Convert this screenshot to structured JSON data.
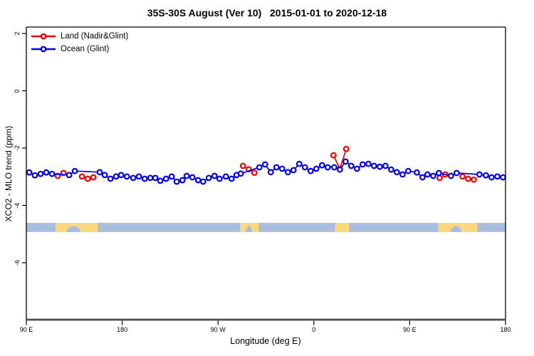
{
  "title": "35S-30S August (Ver 10)   2015-01-01 to 2020-12-18",
  "axes": {
    "x_label": "Longitude (deg E)",
    "y_label": "XCO2 - MLO trend (ppm)",
    "x_ticks": [
      {
        "deg": 90,
        "label": "90 E"
      },
      {
        "deg": 180,
        "label": "180"
      },
      {
        "deg": 270,
        "label": "90 W"
      },
      {
        "deg": 360,
        "label": "0"
      },
      {
        "deg": 450,
        "label": "90 E"
      },
      {
        "deg": 540,
        "label": "180"
      }
    ],
    "y_ticks": [
      {
        "value": 2,
        "label": "2"
      },
      {
        "value": 0,
        "label": "0"
      },
      {
        "value": -2,
        "label": "-2"
      },
      {
        "value": -4,
        "label": "-4"
      },
      {
        "value": -6,
        "label": "-6"
      }
    ]
  },
  "legend": [
    {
      "name": "Land (Nadir&Glint)",
      "color": "#ff0000"
    },
    {
      "name": "Ocean (Glint)",
      "color": "#0000ff"
    }
  ],
  "colors": {
    "land_series": "#ff0000",
    "ocean_series": "#0000ff",
    "band_ocean": "#a9bedf",
    "band_land": "#fcd87f",
    "frame": "#000000",
    "bottom_axis": "#4d4d4d",
    "marker_fill": "#ffffff"
  },
  "chart_data": {
    "type": "line",
    "title": "35S-30S August (Ver 10)   2015-01-01 to 2020-12-18",
    "xlabel": "Longitude (deg E)",
    "ylabel": "XCO2 - MLO trend (ppm)",
    "x_axis_note": "x = longitude along axis starting at 90E, increasing eastward through 180, 90W, 0, 90E to 180 (axis degrees 90-540)",
    "xlim_deg": [
      90,
      540
    ],
    "ylim": [
      -8,
      2.25
    ],
    "grid": false,
    "legend_position": "top-left inside",
    "marker": "open-circle",
    "series": [
      {
        "name": "Ocean (Glint)",
        "color": "#0000ff",
        "points": [
          [
            92.7,
            -2.85
          ],
          [
            98.0,
            -2.95
          ],
          [
            103.4,
            -2.9
          ],
          [
            108.7,
            -2.85
          ],
          [
            114.1,
            -2.9
          ],
          [
            130.2,
            -2.94
          ],
          [
            135.5,
            -2.8
          ],
          [
            158.9,
            -2.84
          ],
          [
            163.6,
            -2.94
          ],
          [
            169.0,
            -3.07
          ],
          [
            174.3,
            -2.99
          ],
          [
            179.0,
            -2.94
          ],
          [
            184.4,
            -2.99
          ],
          [
            190.4,
            -3.04
          ],
          [
            195.7,
            -2.99
          ],
          [
            201.1,
            -3.07
          ],
          [
            206.4,
            -3.04
          ],
          [
            211.1,
            -3.04
          ],
          [
            215.8,
            -3.14
          ],
          [
            221.2,
            -3.07
          ],
          [
            226.5,
            -2.99
          ],
          [
            231.2,
            -3.17
          ],
          [
            236.6,
            -3.12
          ],
          [
            240.6,
            -2.97
          ],
          [
            245.9,
            -3.02
          ],
          [
            251.3,
            -3.12
          ],
          [
            256.0,
            -3.17
          ],
          [
            261.3,
            -3.04
          ],
          [
            266.7,
            -2.97
          ],
          [
            271.4,
            -3.07
          ],
          [
            277.4,
            -2.99
          ],
          [
            282.7,
            -3.07
          ],
          [
            287.4,
            -2.94
          ],
          [
            291.4,
            -2.89
          ],
          [
            308.8,
            -2.67
          ],
          [
            314.2,
            -2.57
          ],
          [
            319.5,
            -2.84
          ],
          [
            324.9,
            -2.67
          ],
          [
            330.2,
            -2.72
          ],
          [
            335.6,
            -2.84
          ],
          [
            340.9,
            -2.77
          ],
          [
            346.3,
            -2.55
          ],
          [
            351.6,
            -2.67
          ],
          [
            357.0,
            -2.8
          ],
          [
            362.3,
            -2.72
          ],
          [
            367.7,
            -2.6
          ],
          [
            373.0,
            -2.67
          ],
          [
            379.1,
            -2.67
          ],
          [
            384.4,
            -2.75
          ],
          [
            389.8,
            -2.47
          ],
          [
            395.1,
            -2.62
          ],
          [
            400.5,
            -2.72
          ],
          [
            405.8,
            -2.57
          ],
          [
            411.2,
            -2.55
          ],
          [
            416.5,
            -2.62
          ],
          [
            421.9,
            -2.65
          ],
          [
            427.2,
            -2.62
          ],
          [
            432.6,
            -2.75
          ],
          [
            437.9,
            -2.84
          ],
          [
            443.3,
            -2.92
          ],
          [
            448.6,
            -2.8
          ],
          [
            456.7,
            -2.85
          ],
          [
            462.0,
            -3.02
          ],
          [
            466.7,
            -2.92
          ],
          [
            472.1,
            -2.97
          ],
          [
            477.4,
            -2.87
          ],
          [
            488.8,
            -2.97
          ],
          [
            494.1,
            -2.87
          ],
          [
            515.5,
            -2.92
          ],
          [
            521.6,
            -2.95
          ],
          [
            526.9,
            -3.02
          ],
          [
            532.3,
            -2.99
          ],
          [
            537.6,
            -3.02
          ]
        ]
      },
      {
        "name": "Land (Nadir&Glint)",
        "color": "#ff0000",
        "segments": [
          [
            [
              119.4,
              -2.97
            ],
            [
              124.8,
              -2.87
            ]
          ],
          [
            [
              142.2,
              -2.99
            ],
            [
              147.6,
              -3.07
            ],
            [
              152.9,
              -3.02
            ]
          ],
          [
            [
              293.4,
              -2.62
            ],
            [
              298.8,
              -2.74
            ],
            [
              304.1,
              -2.86
            ]
          ],
          [
            [
              378.4,
              -2.25
            ],
            [
              384.4,
              -2.73
            ],
            [
              390.4,
              -2.03
            ]
          ],
          [
            [
              478.1,
              -3.04
            ],
            [
              483.4,
              -2.92
            ]
          ],
          [
            [
              499.5,
              -2.99
            ],
            [
              504.8,
              -3.07
            ],
            [
              510.2,
              -3.1
            ]
          ]
        ]
      }
    ],
    "land_ocean_band": {
      "description": "strip showing land (yellow) vs ocean (blue-gray) within the 35S-30S latitude band",
      "y_value_range": [
        -4.93,
        -4.61
      ],
      "ocean_color": "#a9bedf",
      "land_color": "#fcd87f",
      "land_segments_deg": [
        [
          117.4,
          156.9
        ],
        [
          290.8,
          308.1
        ],
        [
          379.8,
          393.1
        ],
        [
          476.8,
          513.6
        ]
      ],
      "ocean_notches_deg": [
        [
          127.5,
          141.0
        ],
        [
          296.0,
          302.0
        ],
        [
          488.1,
          498.8
        ]
      ]
    }
  }
}
